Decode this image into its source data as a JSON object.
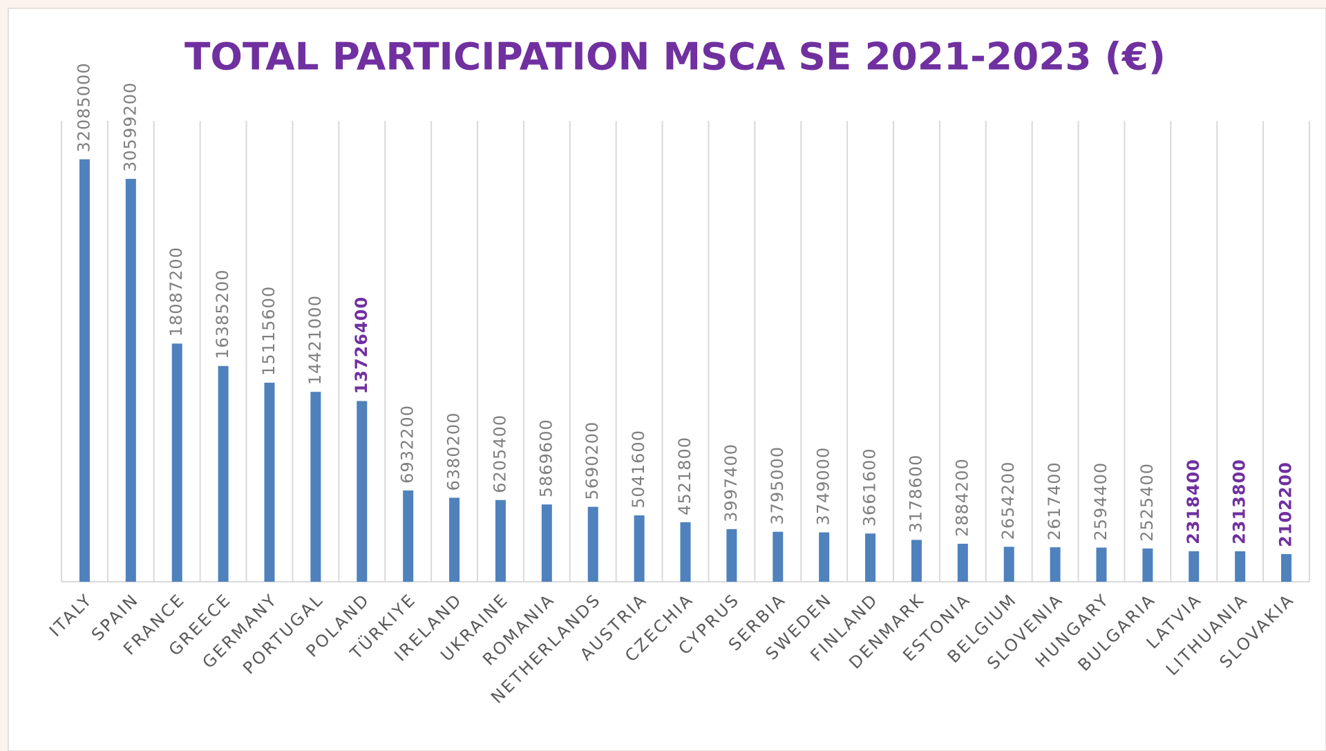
{
  "chart_data": {
    "type": "bar",
    "title": "TOTAL PARTICIPATION MSCA SE 2021-2023 (€)",
    "categories": [
      "ITALY",
      "SPAIN",
      "FRANCE",
      "GREECE",
      "GERMANY",
      "PORTUGAL",
      "POLAND",
      "TÜRKIYE",
      "IRELAND",
      "UKRAINE",
      "ROMANIA",
      "NETHERLANDS",
      "AUSTRIA",
      "CZECHIA",
      "CYPRUS",
      "SERBIA",
      "SWEDEN",
      "FINLAND",
      "DENMARK",
      "ESTONIA",
      "BELGIUM",
      "SLOVENIA",
      "HUNGARY",
      "BULGARIA",
      "LATVIA",
      "LITHUANIA",
      "SLOVAKIA"
    ],
    "values": [
      32085000,
      30599200,
      18087200,
      16385200,
      15115600,
      14421000,
      13726400,
      6932200,
      6380200,
      6205400,
      5869600,
      5690200,
      5041600,
      4521800,
      3997400,
      3795000,
      3749000,
      3661600,
      3178600,
      2884200,
      2654200,
      2617400,
      2594400,
      2525400,
      2318400,
      2313800,
      2102200
    ],
    "color": "#4f81bd",
    "title_color": "#7030a0",
    "value_label_colors": [
      "#7f7f7f",
      "#7f7f7f",
      "#7f7f7f",
      "#7f7f7f",
      "#7f7f7f",
      "#7f7f7f",
      "#7030a0",
      "#7f7f7f",
      "#7f7f7f",
      "#7f7f7f",
      "#7f7f7f",
      "#7f7f7f",
      "#7f7f7f",
      "#7f7f7f",
      "#7f7f7f",
      "#7f7f7f",
      "#7f7f7f",
      "#7f7f7f",
      "#7f7f7f",
      "#7f7f7f",
      "#7f7f7f",
      "#7f7f7f",
      "#7f7f7f",
      "#7f7f7f",
      "#7030a0",
      "#7030a0",
      "#7030a0"
    ],
    "ylim": [
      0,
      35000000
    ],
    "grid": true
  }
}
